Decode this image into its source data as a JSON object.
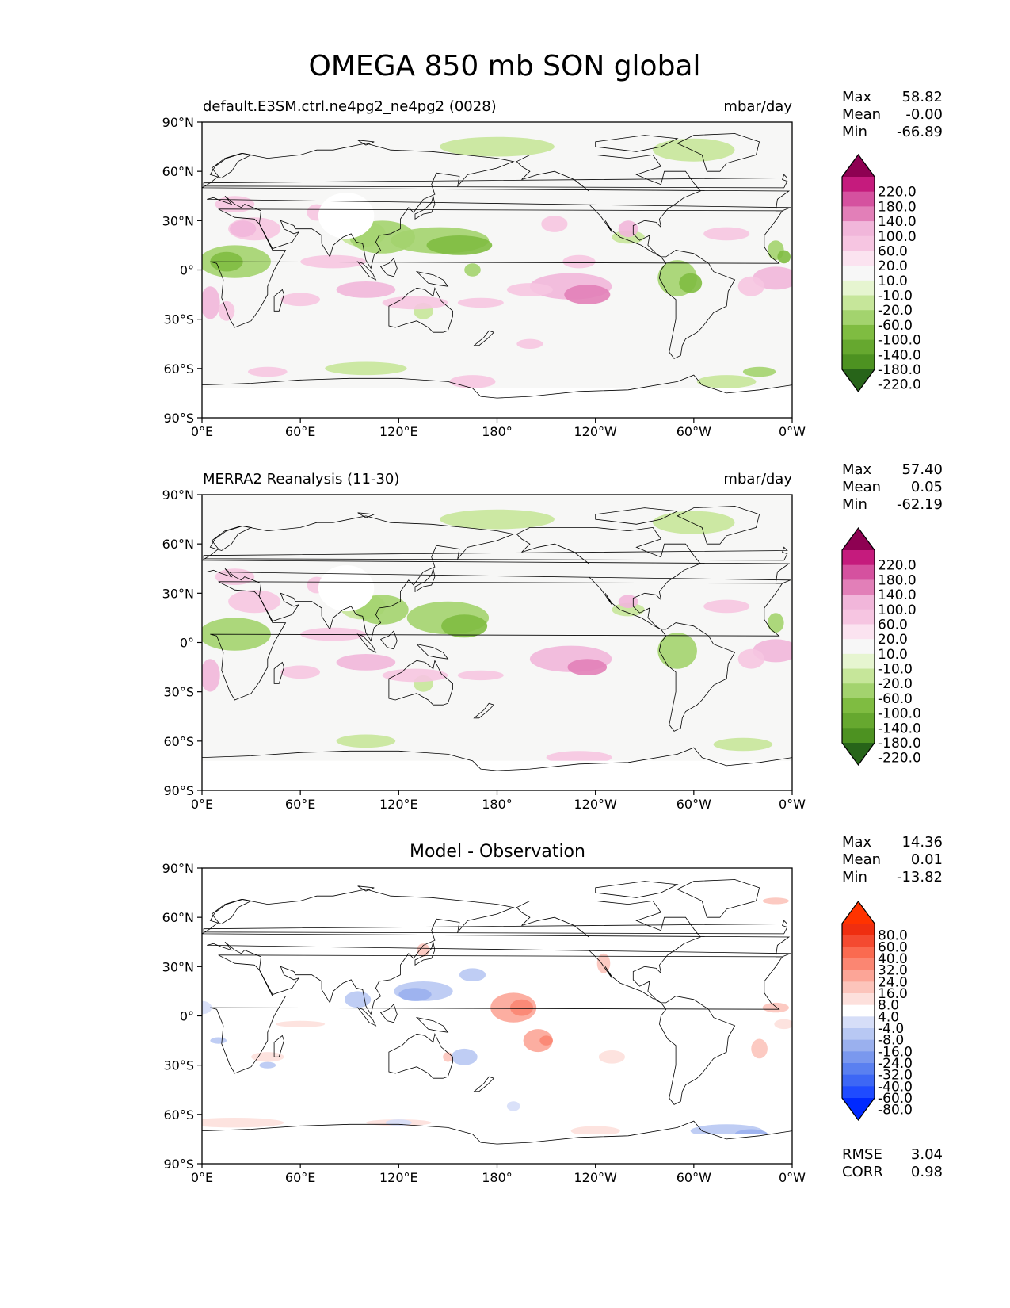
{
  "figure": {
    "title": "OMEGA 850 mb SON global"
  },
  "axes": {
    "lat_ticks": [
      "90°N",
      "60°N",
      "30°N",
      "0°",
      "30°S",
      "60°S",
      "90°S"
    ],
    "lon_ticks": [
      "0°E",
      "60°E",
      "120°E",
      "180°",
      "120°W",
      "60°W",
      "0°W"
    ]
  },
  "colors": {
    "land_outline": "#000000",
    "ocean_bg_diverging_pg": "#f7f7f6",
    "test_ref_colorbar": [
      "#276419",
      "#4d9221",
      "#66a82f",
      "#7fbc41",
      "#a3d36e",
      "#c6e69a",
      "#e6f5d0",
      "#f7f7f7",
      "#fbe3f0",
      "#f6c5e1",
      "#f1b6da",
      "#e27fb8",
      "#d5519f",
      "#c51b7d",
      "#8e0152"
    ],
    "diff_colorbar": [
      "#0029ff",
      "#1f4bff",
      "#3d67f5",
      "#5a80f0",
      "#7a98ee",
      "#9ab0ee",
      "#b8c8f3",
      "#d6def8",
      "#ffffff",
      "#fde0dc",
      "#fcc4bb",
      "#fca597",
      "#fb8672",
      "#fa6a50",
      "#f44a30",
      "#ef2e10",
      "#ff3300"
    ]
  },
  "panels": [
    {
      "id": "test",
      "left_title": "default.E3SM.ctrl.ne4pg2_ne4pg2 (0028)",
      "right_title": "mbar/day",
      "center_title": "",
      "stats": {
        "max_label": "Max",
        "max": "58.82",
        "mean_label": "Mean",
        "mean": "-0.00",
        "min_label": "Min",
        "min": "-66.89"
      },
      "colorbar_labels": [
        "220.0",
        "180.0",
        "140.0",
        "100.0",
        "60.0",
        "20.0",
        "10.0",
        "-10.0",
        "-20.0",
        "-60.0",
        "-100.0",
        "-140.0",
        "-180.0",
        "-220.0"
      ]
    },
    {
      "id": "ref",
      "left_title": "MERRA2 Reanalysis (11-30)",
      "right_title": "mbar/day",
      "center_title": "",
      "stats": {
        "max_label": "Max",
        "max": "57.40",
        "mean_label": "Mean",
        "mean": "0.05",
        "min_label": "Min",
        "min": "-62.19"
      },
      "colorbar_labels": [
        "220.0",
        "180.0",
        "140.0",
        "100.0",
        "60.0",
        "20.0",
        "10.0",
        "-10.0",
        "-20.0",
        "-60.0",
        "-100.0",
        "-140.0",
        "-180.0",
        "-220.0"
      ]
    },
    {
      "id": "diff",
      "left_title": "",
      "right_title": "",
      "center_title": "Model - Observation",
      "stats": {
        "max_label": "Max",
        "max": "14.36",
        "mean_label": "Mean",
        "mean": "0.01",
        "min_label": "Min",
        "min": "-13.82"
      },
      "colorbar_labels": [
        "80.0",
        "60.0",
        "40.0",
        "32.0",
        "24.0",
        "16.0",
        "8.0",
        "4.0",
        "-4.0",
        "-8.0",
        "-16.0",
        "-24.0",
        "-32.0",
        "-40.0",
        "-60.0",
        "-80.0"
      ],
      "rmse_label": "RMSE",
      "rmse": "3.04",
      "corr_label": "CORR",
      "corr": "0.98"
    }
  ]
}
